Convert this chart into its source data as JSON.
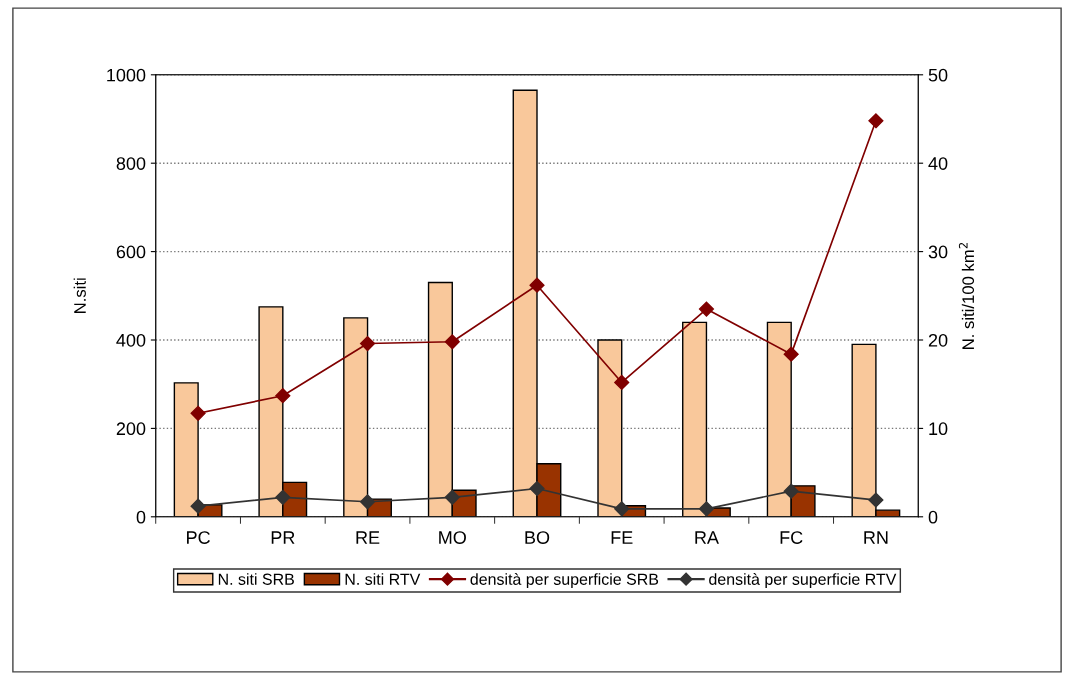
{
  "chart_data": {
    "type": "bar",
    "ylabel": "N.siti",
    "y2label": "N. siti/100 km$^{2}$",
    "categories": [
      "PC",
      "PR",
      "RE",
      "MO",
      "BO",
      "FE",
      "RA",
      "FC",
      "RN"
    ],
    "series": [
      {
        "name": "N. siti SRB",
        "color": "#f9c89b",
        "values": [
          303,
          475,
          450,
          530,
          965,
          400,
          440,
          440,
          390
        ]
      },
      {
        "name": "N. siti RTV",
        "color": "#993300",
        "values": [
          27,
          78,
          40,
          60,
          120,
          25,
          20,
          70,
          15
        ]
      },
      {
        "name": "densità per superficie SRB",
        "type": "line",
        "axis": "y2",
        "color": "#800000",
        "values": [
          11.7,
          13.7,
          19.6,
          19.8,
          26.2,
          15.2,
          23.5,
          18.4,
          44.8
        ]
      },
      {
        "name": "densità per superficie RTV",
        "type": "line",
        "axis": "y2",
        "color": "#333333",
        "values": [
          1.2,
          2.2,
          1.7,
          2.2,
          3.2,
          0.9,
          0.9,
          2.9,
          1.9
        ]
      }
    ],
    "ylim": [
      0,
      1000
    ],
    "yticks": [
      0,
      200,
      400,
      600,
      800,
      1000
    ],
    "y2lim": [
      0,
      50
    ],
    "y2ticks": [
      0,
      10,
      20,
      30,
      40,
      50
    ],
    "grid": "y",
    "legend": "bottom",
    "marker": "diamond",
    "line_style": "solid"
  }
}
